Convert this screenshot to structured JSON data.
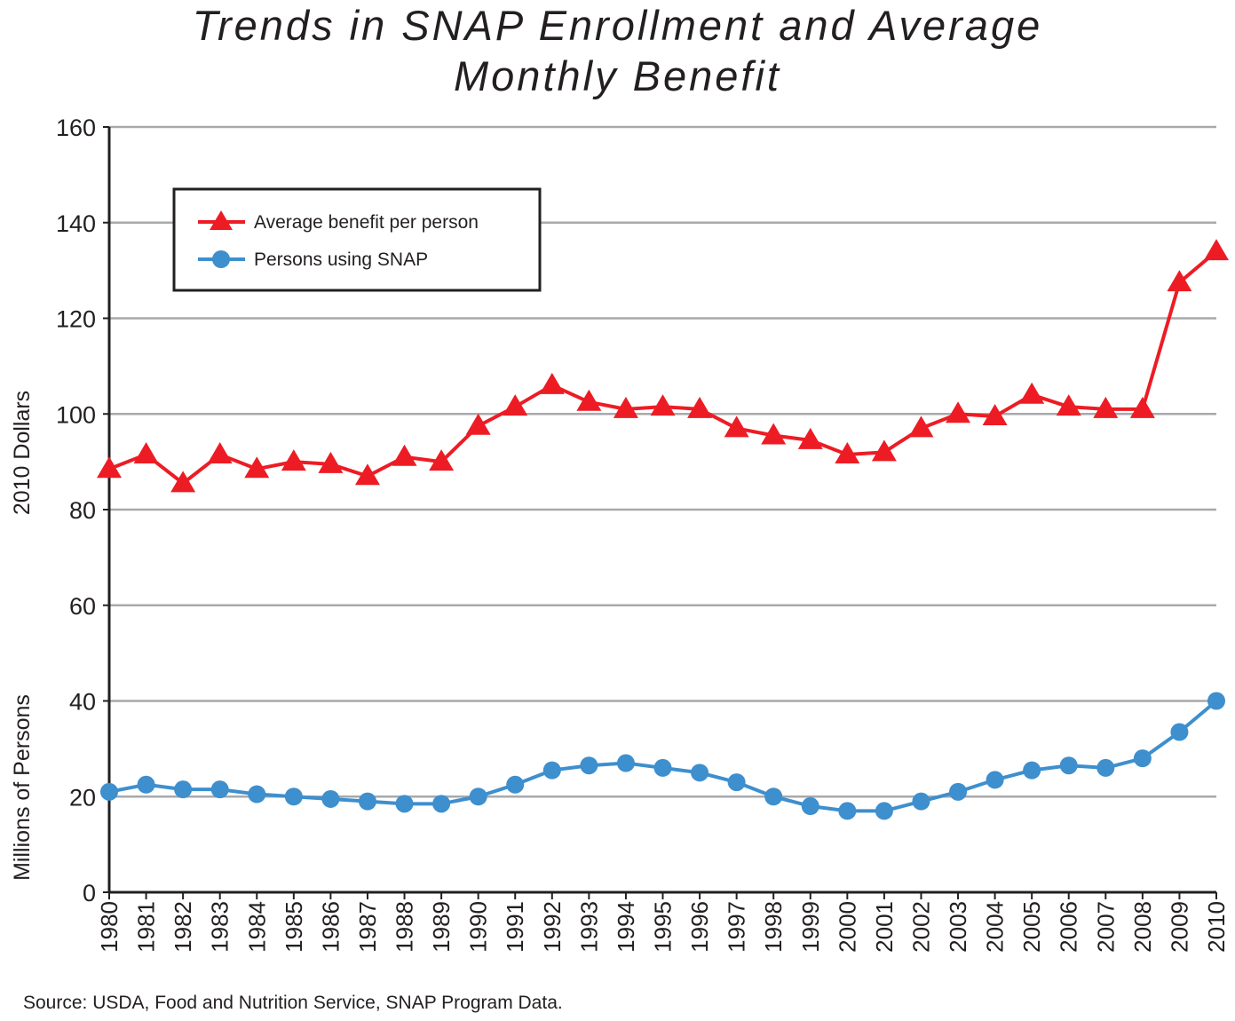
{
  "chart_data": {
    "type": "line",
    "title_lines": [
      "Trends in SNAP Enrollment and Average",
      "Monthly Benefit"
    ],
    "ylabel_upper": "2010 Dollars",
    "ylabel_lower": "Millions of Persons",
    "ylim": [
      0,
      160
    ],
    "y_ticks": [
      "0",
      "20",
      "40",
      "60",
      "80",
      "100",
      "120",
      "140",
      "160"
    ],
    "grid": "horizontal",
    "legend_placement": "top-left",
    "categories": [
      "1980",
      "1981",
      "1982",
      "1983",
      "1984",
      "1985",
      "1986",
      "1987",
      "1988",
      "1989",
      "1990",
      "1991",
      "1992",
      "1993",
      "1994",
      "1995",
      "1996",
      "1997",
      "1998",
      "1999",
      "2000",
      "2001",
      "2002",
      "2003",
      "2004",
      "2005",
      "2006",
      "2007",
      "2008",
      "2009",
      "2010"
    ],
    "series": [
      {
        "name": "Average benefit per person",
        "marker": "triangle",
        "color": "#ed1c24",
        "values": [
          88.5,
          91.5,
          85.5,
          91.5,
          88.5,
          90,
          89.5,
          87,
          91,
          90,
          97.5,
          101.5,
          106,
          102.5,
          101,
          101.5,
          101,
          97,
          95.5,
          94.5,
          91.5,
          92,
          97,
          100,
          99.5,
          104,
          101.5,
          101,
          101,
          127.5,
          134
        ]
      },
      {
        "name": "Persons using SNAP",
        "marker": "circle",
        "color": "#3d8fce",
        "values": [
          21,
          22.5,
          21.5,
          21.5,
          20.5,
          20,
          19.5,
          19,
          18.5,
          18.5,
          20,
          22.5,
          25.5,
          26.5,
          27,
          26,
          25,
          23,
          20,
          18,
          17,
          17,
          19,
          21,
          23.5,
          25.5,
          26.5,
          26,
          28,
          33.5,
          40
        ]
      }
    ]
  },
  "source_note": "Source: USDA, Food and Nutrition Service, SNAP Program Data."
}
